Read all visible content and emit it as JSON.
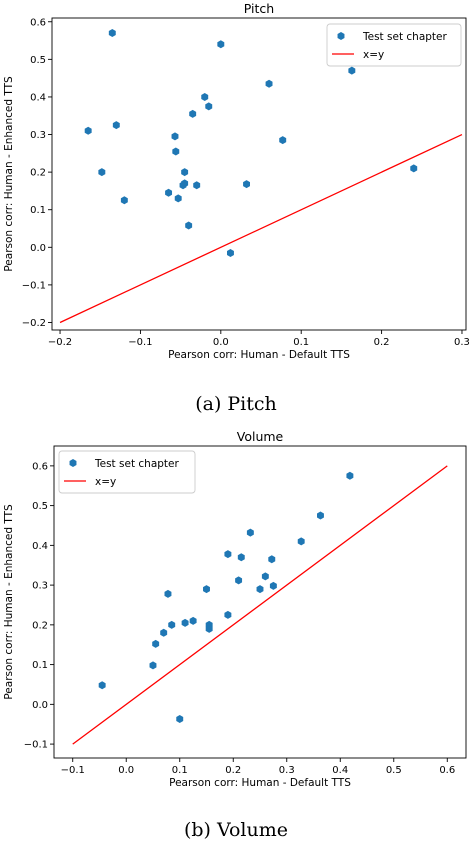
{
  "chart_data": [
    {
      "type": "scatter",
      "title": "Pitch",
      "xlabel": "Pearson corr: Human - Default TTS",
      "ylabel": "Pearson corr: Human - Enhanced TTS",
      "caption": "(a) Pitch",
      "xlim": [
        -0.21,
        0.305
      ],
      "ylim": [
        -0.22,
        0.61
      ],
      "xticks": [
        -0.2,
        -0.1,
        0.0,
        0.1,
        0.2,
        0.3
      ],
      "xtick_labels": [
        "−0.2",
        "−0.1",
        "0.0",
        "0.1",
        "0.2",
        "0.3"
      ],
      "yticks": [
        -0.2,
        -0.1,
        0.0,
        0.1,
        0.2,
        0.3,
        0.4,
        0.5,
        0.6
      ],
      "ytick_labels": [
        "−0.2",
        "−0.1",
        "0.0",
        "0.1",
        "0.2",
        "0.3",
        "0.4",
        "0.5",
        "0.6"
      ],
      "legend_position": "top-right",
      "grid": false,
      "series": [
        {
          "name": "Test set chapter",
          "kind": "scatter",
          "color": "#1f77b4",
          "points": [
            [
              -0.135,
              0.57
            ],
            [
              0.0,
              0.54
            ],
            [
              -0.02,
              0.4
            ],
            [
              -0.015,
              0.375
            ],
            [
              0.06,
              0.435
            ],
            [
              0.163,
              0.47
            ],
            [
              -0.035,
              0.355
            ],
            [
              -0.165,
              0.31
            ],
            [
              -0.13,
              0.325
            ],
            [
              -0.057,
              0.295
            ],
            [
              -0.056,
              0.255
            ],
            [
              0.077,
              0.285
            ],
            [
              -0.148,
              0.2
            ],
            [
              -0.045,
              0.2
            ],
            [
              -0.065,
              0.145
            ],
            [
              -0.045,
              0.17
            ],
            [
              -0.047,
              0.165
            ],
            [
              -0.03,
              0.165
            ],
            [
              -0.053,
              0.13
            ],
            [
              0.032,
              0.168
            ],
            [
              -0.12,
              0.125
            ],
            [
              -0.04,
              0.058
            ],
            [
              0.012,
              -0.015
            ],
            [
              0.24,
              0.21
            ]
          ]
        },
        {
          "name": "x=y",
          "kind": "line",
          "color": "#ff0000",
          "points": [
            [
              -0.2,
              -0.2
            ],
            [
              0.3,
              0.3
            ]
          ]
        }
      ]
    },
    {
      "type": "scatter",
      "title": "Volume",
      "xlabel": "Pearson corr: Human - Default TTS",
      "ylabel": "Pearson corr: Human - Enhanced TTS",
      "caption": "(b) Volume",
      "xlim": [
        -0.135,
        0.635
      ],
      "ylim": [
        -0.135,
        0.65
      ],
      "xticks": [
        -0.1,
        0.0,
        0.1,
        0.2,
        0.3,
        0.4,
        0.5,
        0.6
      ],
      "xtick_labels": [
        "−0.1",
        "0.0",
        "0.1",
        "0.2",
        "0.3",
        "0.4",
        "0.5",
        "0.6"
      ],
      "yticks": [
        -0.1,
        0.0,
        0.1,
        0.2,
        0.3,
        0.4,
        0.5,
        0.6
      ],
      "ytick_labels": [
        "−0.1",
        "0.0",
        "0.1",
        "0.2",
        "0.3",
        "0.4",
        "0.5",
        "0.6"
      ],
      "legend_position": "top-left",
      "grid": false,
      "series": [
        {
          "name": "Test set chapter",
          "kind": "scatter",
          "color": "#1f77b4",
          "points": [
            [
              0.418,
              0.575
            ],
            [
              0.363,
              0.475
            ],
            [
              0.232,
              0.432
            ],
            [
              0.327,
              0.41
            ],
            [
              0.19,
              0.378
            ],
            [
              0.215,
              0.37
            ],
            [
              0.272,
              0.365
            ],
            [
              0.26,
              0.322
            ],
            [
              0.21,
              0.312
            ],
            [
              0.15,
              0.29
            ],
            [
              0.25,
              0.29
            ],
            [
              0.275,
              0.298
            ],
            [
              0.078,
              0.278
            ],
            [
              0.19,
              0.225
            ],
            [
              0.125,
              0.21
            ],
            [
              0.11,
              0.205
            ],
            [
              0.085,
              0.2
            ],
            [
              0.155,
              0.2
            ],
            [
              0.155,
              0.19
            ],
            [
              0.07,
              0.18
            ],
            [
              0.055,
              0.152
            ],
            [
              0.05,
              0.098
            ],
            [
              -0.045,
              0.048
            ],
            [
              0.1,
              -0.037
            ]
          ]
        },
        {
          "name": "x=y",
          "kind": "line",
          "color": "#ff0000",
          "points": [
            [
              -0.1,
              -0.1
            ],
            [
              0.6,
              0.6
            ]
          ]
        }
      ]
    }
  ]
}
